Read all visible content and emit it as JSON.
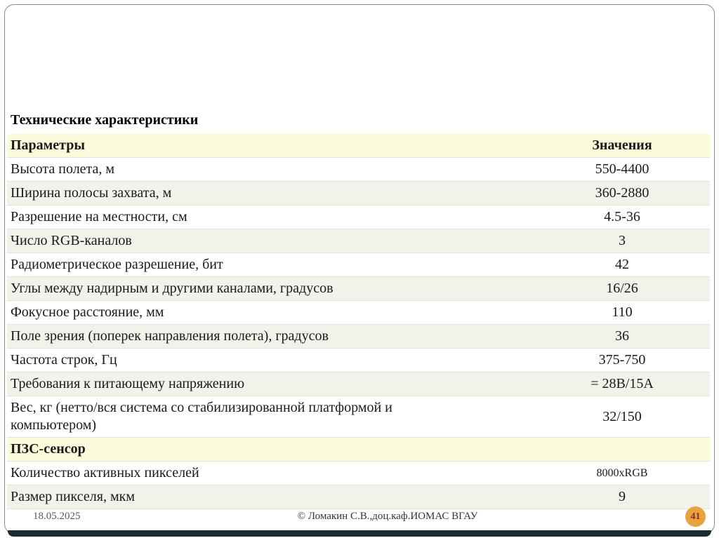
{
  "title": "Технические характеристики",
  "table": {
    "header": {
      "param": "Параметры",
      "value": "Значения"
    },
    "rows": [
      {
        "param": "Высота полета, м",
        "value": "550-4400"
      },
      {
        "param": "Ширина полосы захвата, м",
        "value": "360-2880"
      },
      {
        "param": "Разрешение на местности, см",
        "value": "4.5-36"
      },
      {
        "param": "Число RGB-каналов",
        "value": "3"
      },
      {
        "param": "Радиометрическое разрешение, бит",
        "value": "42"
      },
      {
        "param": "Углы между надирным и другими каналами, градусов",
        "value": "16/26"
      },
      {
        "param": "Фокусное расстояние, мм",
        "value": "110"
      },
      {
        "param": "Поле зрения (поперек направления полета), градусов",
        "value": "36"
      },
      {
        "param": "Частота строк, Гц",
        "value": "375-750"
      },
      {
        "param": "Требования к питающему напряжению",
        "value": "= 28В/15А"
      },
      {
        "param": "Вес, кг (нетто/вся система со стабилизированной платформой и компьютером)",
        "value": "32/150"
      },
      {
        "param": "ПЗС-сенсор",
        "value": "",
        "section": true
      },
      {
        "param": "Количество активных пикселей",
        "value": "8000xRGB",
        "small": true
      },
      {
        "param": "Размер пикселя, мкм",
        "value": "9"
      }
    ]
  },
  "footer": {
    "date": "18.05.2025",
    "copyright": "© Ломакин С.В.,доц.каф.ИОМАС ВГАУ",
    "page": "41"
  },
  "colors": {
    "header_bg": "#fbfbdc",
    "row_alt_bg": "#f2f2ea",
    "badge_bg": "#e9a23c",
    "badge_text": "#8b3225",
    "bar_bg": "#1c2d2f"
  }
}
